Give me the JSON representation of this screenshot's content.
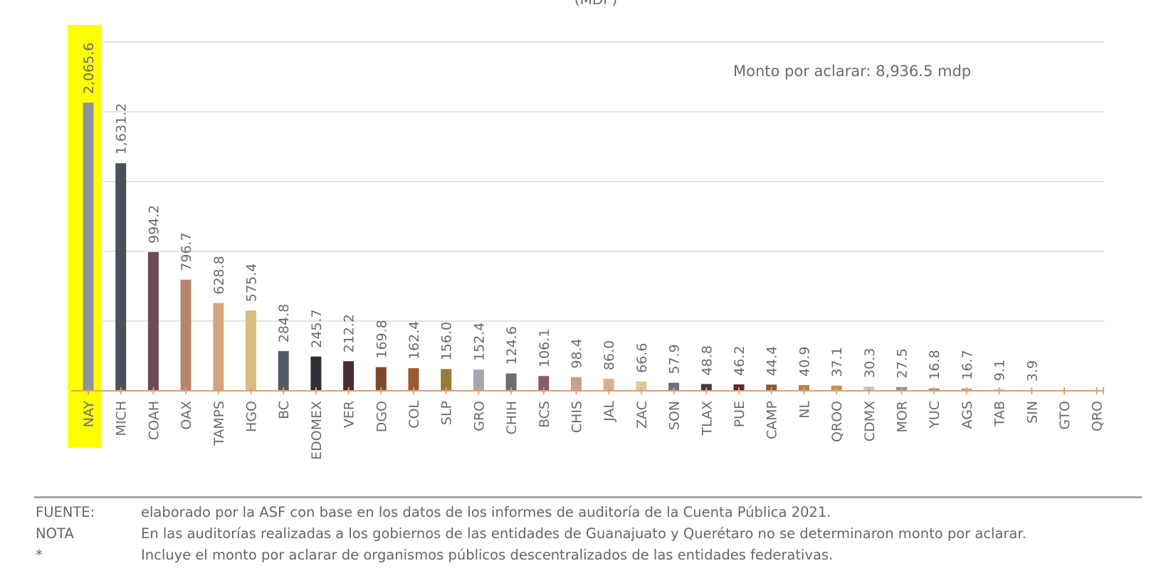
{
  "chart_data": {
    "type": "bar",
    "subtitle": "(MDP)",
    "annotation": "Monto por aclarar: 8,936.5 mdp",
    "categories": [
      "NAY",
      "MICH",
      "COAH",
      "OAX",
      "TAMPS",
      "HGO",
      "BC",
      "EDOMEX",
      "VER",
      "DGO",
      "COL",
      "SLP",
      "GRO",
      "CHIH",
      "BCS",
      "CHIS",
      "JAL",
      "ZAC",
      "SON",
      "TLAX",
      "PUE",
      "CAMP",
      "NL",
      "QROO",
      "CDMX",
      "MOR",
      "YUC",
      "AGS",
      "TAB",
      "SIN",
      "GTO",
      "QRO"
    ],
    "values": [
      2065.6,
      1631.2,
      994.2,
      796.7,
      628.8,
      575.4,
      284.8,
      245.7,
      212.2,
      169.8,
      162.4,
      156.0,
      152.4,
      124.6,
      106.1,
      98.4,
      86.0,
      66.6,
      57.9,
      48.8,
      46.2,
      44.4,
      40.9,
      37.1,
      30.3,
      27.5,
      16.8,
      16.7,
      9.1,
      3.9,
      null,
      null
    ],
    "value_labels": [
      "2,065.6",
      "1,631.2",
      "994.2",
      "796.7",
      "628.8",
      "575.4",
      "284.8",
      "245.7",
      "212.2",
      "169.8",
      "162.4",
      "156.0",
      "152.4",
      "124.6",
      "106.1",
      "98.4",
      "86.0",
      "66.6",
      "57.9",
      "48.8",
      "46.2",
      "44.4",
      "40.9",
      "37.1",
      "30.3",
      "27.5",
      "16.8",
      "16.7",
      "9.1",
      "3.9",
      "",
      ""
    ],
    "colors": [
      "#8c949a",
      "#4b5059",
      "#6b4b57",
      "#b7856f",
      "#d4a47f",
      "#d8bc80",
      "#545a65",
      "#2e3036",
      "#4a2a35",
      "#7b4a2e",
      "#9b5a30",
      "#9a7a3c",
      "#a4a9b0",
      "#6a6e78",
      "#8a5a6e",
      "#c8a090",
      "#d8b090",
      "#e3c79a",
      "#6a7080",
      "#3c3c42",
      "#5a2a35",
      "#8b5a3e",
      "#c08050",
      "#c8904c",
      "#c8c8c8",
      "#909090",
      "#b08878",
      "#c8a080",
      "#c8a080",
      "#c8a080",
      "#c8a080",
      "#c8a080"
    ],
    "highlight": {
      "category": "NAY",
      "color": "#ffff00"
    },
    "ylim": [
      0,
      2500
    ],
    "grid": true
  },
  "footnotes": [
    {
      "key": "FUENTE:",
      "text": "elaborado por la ASF con base en los datos de los informes de auditoría de la Cuenta Pública 2021."
    },
    {
      "key": "NOTA",
      "text": "En las auditorías realizadas a los gobiernos de las entidades de Guanajuato y Querétaro no se determinaron monto por aclarar."
    },
    {
      "key": "*",
      "text": "Incluye el monto por aclarar de organismos públicos descentralizados de las entidades federativas."
    }
  ],
  "axis_color": "#e0a070",
  "grid_color": "#e4e4e4"
}
